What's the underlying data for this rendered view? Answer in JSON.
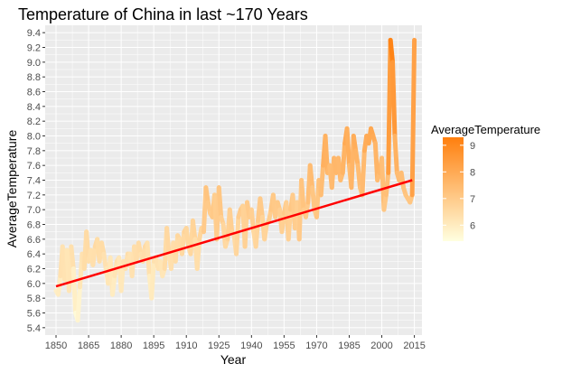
{
  "chart_data": {
    "type": "line",
    "title": "Temperature of China in last ~170 Years",
    "xlabel": "Year",
    "ylabel": "AverageTemperature",
    "xlim": [
      1845,
      2018.5
    ],
    "ylim": [
      5.3,
      9.5
    ],
    "x_ticks": [
      1850,
      1865,
      1880,
      1895,
      1910,
      1925,
      1940,
      1955,
      1970,
      1985,
      2000,
      2015
    ],
    "y_ticks": [
      5.4,
      5.6,
      5.8,
      6.0,
      6.2,
      6.4,
      6.6,
      6.8,
      7.0,
      7.2,
      7.4,
      7.6,
      7.8,
      8.0,
      8.2,
      8.4,
      8.6,
      8.8,
      9.0,
      9.2,
      9.4
    ],
    "grid": true,
    "legend_position": "right",
    "colors": {
      "panel": "#ebebeb",
      "grid": "#ffffff",
      "trend": "#ff0000",
      "color_low": "#ffffe0",
      "color_high": "#ff7f0e"
    },
    "legend": {
      "title": "AverageTemperature",
      "min": 5.4,
      "max": 9.3,
      "labels": [
        6,
        7,
        8,
        9
      ]
    },
    "series": [
      {
        "x": [
          1850,
          1851,
          1852,
          1853,
          1854,
          1855,
          1856,
          1857,
          1858,
          1859,
          1860,
          1861,
          1862,
          1863,
          1864,
          1865,
          1866,
          1867,
          1868,
          1869,
          1870,
          1871,
          1872,
          1873,
          1874,
          1875,
          1876,
          1877,
          1878,
          1879,
          1880,
          1881,
          1882,
          1883,
          1884,
          1885,
          1886,
          1887,
          1888,
          1889,
          1890,
          1891,
          1892,
          1893,
          1894,
          1895,
          1896,
          1897,
          1898,
          1899,
          1900,
          1901,
          1902,
          1903,
          1904,
          1905,
          1906,
          1907,
          1908,
          1909,
          1910,
          1911,
          1912,
          1913,
          1914,
          1915,
          1916,
          1917,
          1918,
          1919,
          1920,
          1921,
          1922,
          1923,
          1924,
          1925,
          1926,
          1927,
          1928,
          1929,
          1930,
          1931,
          1932,
          1933,
          1934,
          1935,
          1936,
          1937,
          1938,
          1939,
          1940,
          1941,
          1942,
          1943,
          1944,
          1945,
          1946,
          1947,
          1948,
          1949,
          1950,
          1951,
          1952,
          1953,
          1954,
          1955,
          1956,
          1957,
          1958,
          1959,
          1960,
          1961,
          1962,
          1963,
          1964,
          1965,
          1966,
          1967,
          1968,
          1969,
          1970,
          1971,
          1972,
          1973,
          1974,
          1975,
          1976,
          1977,
          1978,
          1979,
          1980,
          1981,
          1982,
          1983,
          1984,
          1985,
          1986,
          1987,
          1988,
          1989,
          1990,
          1991,
          1992,
          1993,
          1994,
          1995,
          1996,
          1997,
          1998,
          1999,
          2000,
          2001,
          2002,
          2003,
          2004,
          2005,
          2006,
          2007,
          2008,
          2009,
          2010,
          2011,
          2012,
          2013,
          2014,
          2015
        ],
        "y": [
          5.9,
          5.85,
          6.1,
          6.5,
          6.05,
          6.45,
          5.9,
          6.5,
          6.2,
          5.6,
          5.5,
          5.95,
          6.4,
          6.2,
          6.7,
          6.3,
          6.45,
          6.25,
          6.5,
          6.6,
          6.3,
          6.55,
          6.4,
          6.2,
          6.0,
          6.35,
          5.85,
          6.1,
          6.3,
          6.35,
          5.9,
          6.3,
          6.2,
          6.4,
          6.4,
          6.1,
          6.5,
          6.3,
          6.55,
          6.4,
          6.3,
          6.5,
          6.55,
          6.1,
          5.8,
          6.3,
          6.35,
          6.2,
          6.3,
          6.1,
          6.2,
          6.75,
          6.4,
          6.2,
          6.55,
          6.3,
          6.65,
          6.6,
          6.4,
          6.7,
          6.75,
          6.5,
          6.4,
          6.85,
          6.6,
          6.2,
          6.6,
          6.75,
          6.7,
          7.3,
          7.1,
          6.95,
          6.9,
          7.2,
          6.6,
          7.3,
          6.9,
          6.8,
          6.5,
          6.6,
          7.0,
          6.7,
          6.65,
          6.4,
          6.9,
          7.0,
          7.05,
          6.5,
          7.1,
          6.9,
          7.0,
          6.7,
          6.5,
          6.85,
          7.15,
          6.9,
          6.6,
          6.8,
          6.85,
          7.0,
          7.2,
          6.9,
          7.1,
          7.0,
          6.7,
          6.95,
          7.1,
          6.6,
          7.0,
          7.2,
          6.75,
          7.1,
          6.6,
          7.4,
          7.0,
          6.9,
          7.1,
          7.6,
          7.3,
          7.0,
          6.9,
          7.4,
          7.2,
          7.6,
          8.0,
          7.5,
          7.6,
          7.3,
          7.7,
          7.5,
          7.7,
          7.4,
          7.5,
          7.9,
          8.1,
          7.6,
          7.3,
          8.0,
          7.8,
          7.6,
          7.3,
          7.2,
          7.8,
          8.0,
          7.9,
          8.1,
          8.0,
          7.9,
          7.4,
          7.5,
          7.7,
          7.0,
          7.2,
          7.5,
          9.3,
          9.0,
          8.0,
          7.5,
          7.4,
          7.5,
          7.3,
          7.2,
          7.15,
          7.1,
          7.2,
          9.3
        ]
      }
    ],
    "trend": {
      "x": [
        1850,
        2014
      ],
      "y": [
        5.96,
        7.4
      ]
    }
  }
}
